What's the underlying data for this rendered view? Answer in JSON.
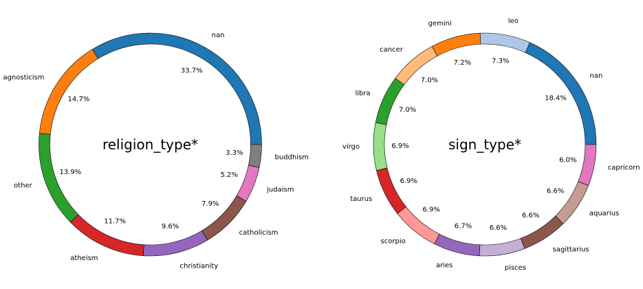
{
  "chart_data": [
    {
      "type": "pie",
      "title": "religion_type*",
      "start_angle": 0,
      "direction": "counterclockwise",
      "slices": [
        {
          "label": "nan",
          "value": 33.7,
          "pct_text": "33.7%",
          "color": "#1f77b4"
        },
        {
          "label": "agnosticism",
          "value": 14.7,
          "pct_text": "14.7%",
          "color": "#ff7f0e"
        },
        {
          "label": "other",
          "value": 13.9,
          "pct_text": "13.9%",
          "color": "#2ca02c"
        },
        {
          "label": "atheism",
          "value": 11.7,
          "pct_text": "11.7%",
          "color": "#d62728"
        },
        {
          "label": "christianity",
          "value": 9.6,
          "pct_text": "9.6%",
          "color": "#9467bd"
        },
        {
          "label": "catholicism",
          "value": 7.9,
          "pct_text": "7.9%",
          "color": "#8c564b"
        },
        {
          "label": "judaism",
          "value": 5.2,
          "pct_text": "5.2%",
          "color": "#e377c2"
        },
        {
          "label": "buddhism",
          "value": 3.3,
          "pct_text": "3.3%",
          "color": "#7f7f7f"
        }
      ]
    },
    {
      "type": "pie",
      "title": "sign_type*",
      "start_angle": 0,
      "direction": "counterclockwise",
      "slices": [
        {
          "label": "nan",
          "value": 18.4,
          "pct_text": "18.4%",
          "color": "#1f77b4"
        },
        {
          "label": "leo",
          "value": 7.3,
          "pct_text": "7.3%",
          "color": "#aec7e8"
        },
        {
          "label": "gemini",
          "value": 7.2,
          "pct_text": "7.2%",
          "color": "#ff7f0e"
        },
        {
          "label": "cancer",
          "value": 7.0,
          "pct_text": "7.0%",
          "color": "#ffbb78"
        },
        {
          "label": "libra",
          "value": 7.0,
          "pct_text": "7.0%",
          "color": "#2ca02c"
        },
        {
          "label": "virgo",
          "value": 6.9,
          "pct_text": "6.9%",
          "color": "#98df8a"
        },
        {
          "label": "taurus",
          "value": 6.9,
          "pct_text": "6.9%",
          "color": "#d62728"
        },
        {
          "label": "scorpio",
          "value": 6.9,
          "pct_text": "6.9%",
          "color": "#ff9896"
        },
        {
          "label": "aries",
          "value": 6.7,
          "pct_text": "6.7%",
          "color": "#9467bd"
        },
        {
          "label": "pisces",
          "value": 6.6,
          "pct_text": "6.6%",
          "color": "#c5b0d5"
        },
        {
          "label": "sagittarius",
          "value": 6.6,
          "pct_text": "6.6%",
          "color": "#8c564b"
        },
        {
          "label": "aquarius",
          "value": 6.6,
          "pct_text": "6.6%",
          "color": "#c49c94"
        },
        {
          "label": "capricorn",
          "value": 6.0,
          "pct_text": "6.0%",
          "color": "#e377c2"
        }
      ]
    }
  ]
}
